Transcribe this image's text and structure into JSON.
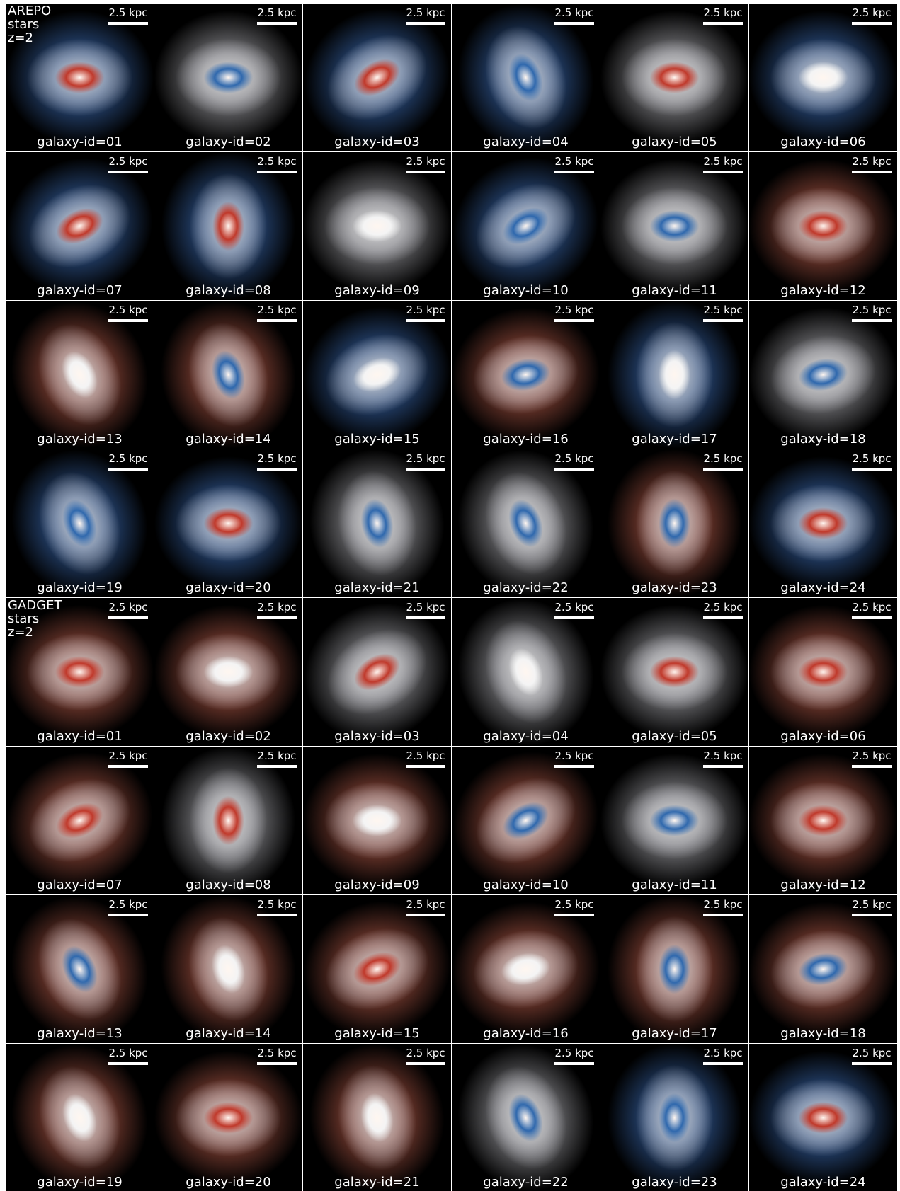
{
  "blocks": [
    {
      "label": [
        "AREPO",
        "stars",
        "z=2"
      ],
      "panels": [
        {
          "scale": "2.5 kpc",
          "id": "galaxy-id=01"
        },
        {
          "scale": "2.5 kpc",
          "id": "galaxy-id=02"
        },
        {
          "scale": "2.5 kpc",
          "id": "galaxy-id=03"
        },
        {
          "scale": "2.5 kpc",
          "id": "galaxy-id=04"
        },
        {
          "scale": "2.5 kpc",
          "id": "galaxy-id=05"
        },
        {
          "scale": "2.5 kpc",
          "id": "galaxy-id=06"
        },
        {
          "scale": "2.5 kpc",
          "id": "galaxy-id=07"
        },
        {
          "scale": "2.5 kpc",
          "id": "galaxy-id=08"
        },
        {
          "scale": "2.5 kpc",
          "id": "galaxy-id=09"
        },
        {
          "scale": "2.5 kpc",
          "id": "galaxy-id=10"
        },
        {
          "scale": "2.5 kpc",
          "id": "galaxy-id=11"
        },
        {
          "scale": "2.5 kpc",
          "id": "galaxy-id=12"
        },
        {
          "scale": "2.5 kpc",
          "id": "galaxy-id=13"
        },
        {
          "scale": "2.5 kpc",
          "id": "galaxy-id=14"
        },
        {
          "scale": "2.5 kpc",
          "id": "galaxy-id=15"
        },
        {
          "scale": "2.5 kpc",
          "id": "galaxy-id=16"
        },
        {
          "scale": "2.5 kpc",
          "id": "galaxy-id=17"
        },
        {
          "scale": "2.5 kpc",
          "id": "galaxy-id=18"
        },
        {
          "scale": "2.5 kpc",
          "id": "galaxy-id=19"
        },
        {
          "scale": "2.5 kpc",
          "id": "galaxy-id=20"
        },
        {
          "scale": "2.5 kpc",
          "id": "galaxy-id=21"
        },
        {
          "scale": "2.5 kpc",
          "id": "galaxy-id=22"
        },
        {
          "scale": "2.5 kpc",
          "id": "galaxy-id=23"
        },
        {
          "scale": "2.5 kpc",
          "id": "galaxy-id=24"
        }
      ]
    },
    {
      "label": [
        "GADGET",
        "stars",
        "z=2"
      ],
      "panels": [
        {
          "scale": "2.5 kpc",
          "id": "galaxy-id=01"
        },
        {
          "scale": "2.5 kpc",
          "id": "galaxy-id=02"
        },
        {
          "scale": "2.5 kpc",
          "id": "galaxy-id=03"
        },
        {
          "scale": "2.5 kpc",
          "id": "galaxy-id=04"
        },
        {
          "scale": "2.5 kpc",
          "id": "galaxy-id=05"
        },
        {
          "scale": "2.5 kpc",
          "id": "galaxy-id=06"
        },
        {
          "scale": "2.5 kpc",
          "id": "galaxy-id=07"
        },
        {
          "scale": "2.5 kpc",
          "id": "galaxy-id=08"
        },
        {
          "scale": "2.5 kpc",
          "id": "galaxy-id=09"
        },
        {
          "scale": "2.5 kpc",
          "id": "galaxy-id=10"
        },
        {
          "scale": "2.5 kpc",
          "id": "galaxy-id=11"
        },
        {
          "scale": "2.5 kpc",
          "id": "galaxy-id=12"
        },
        {
          "scale": "2.5 kpc",
          "id": "galaxy-id=13"
        },
        {
          "scale": "2.5 kpc",
          "id": "galaxy-id=14"
        },
        {
          "scale": "2.5 kpc",
          "id": "galaxy-id=15"
        },
        {
          "scale": "2.5 kpc",
          "id": "galaxy-id=16"
        },
        {
          "scale": "2.5 kpc",
          "id": "galaxy-id=17"
        },
        {
          "scale": "2.5 kpc",
          "id": "galaxy-id=18"
        },
        {
          "scale": "2.5 kpc",
          "id": "galaxy-id=19"
        },
        {
          "scale": "2.5 kpc",
          "id": "galaxy-id=20"
        },
        {
          "scale": "2.5 kpc",
          "id": "galaxy-id=21"
        },
        {
          "scale": "2.5 kpc",
          "id": "galaxy-id=22"
        },
        {
          "scale": "2.5 kpc",
          "id": "galaxy-id=23"
        },
        {
          "scale": "2.5 kpc",
          "id": "galaxy-id=24"
        }
      ]
    }
  ]
}
